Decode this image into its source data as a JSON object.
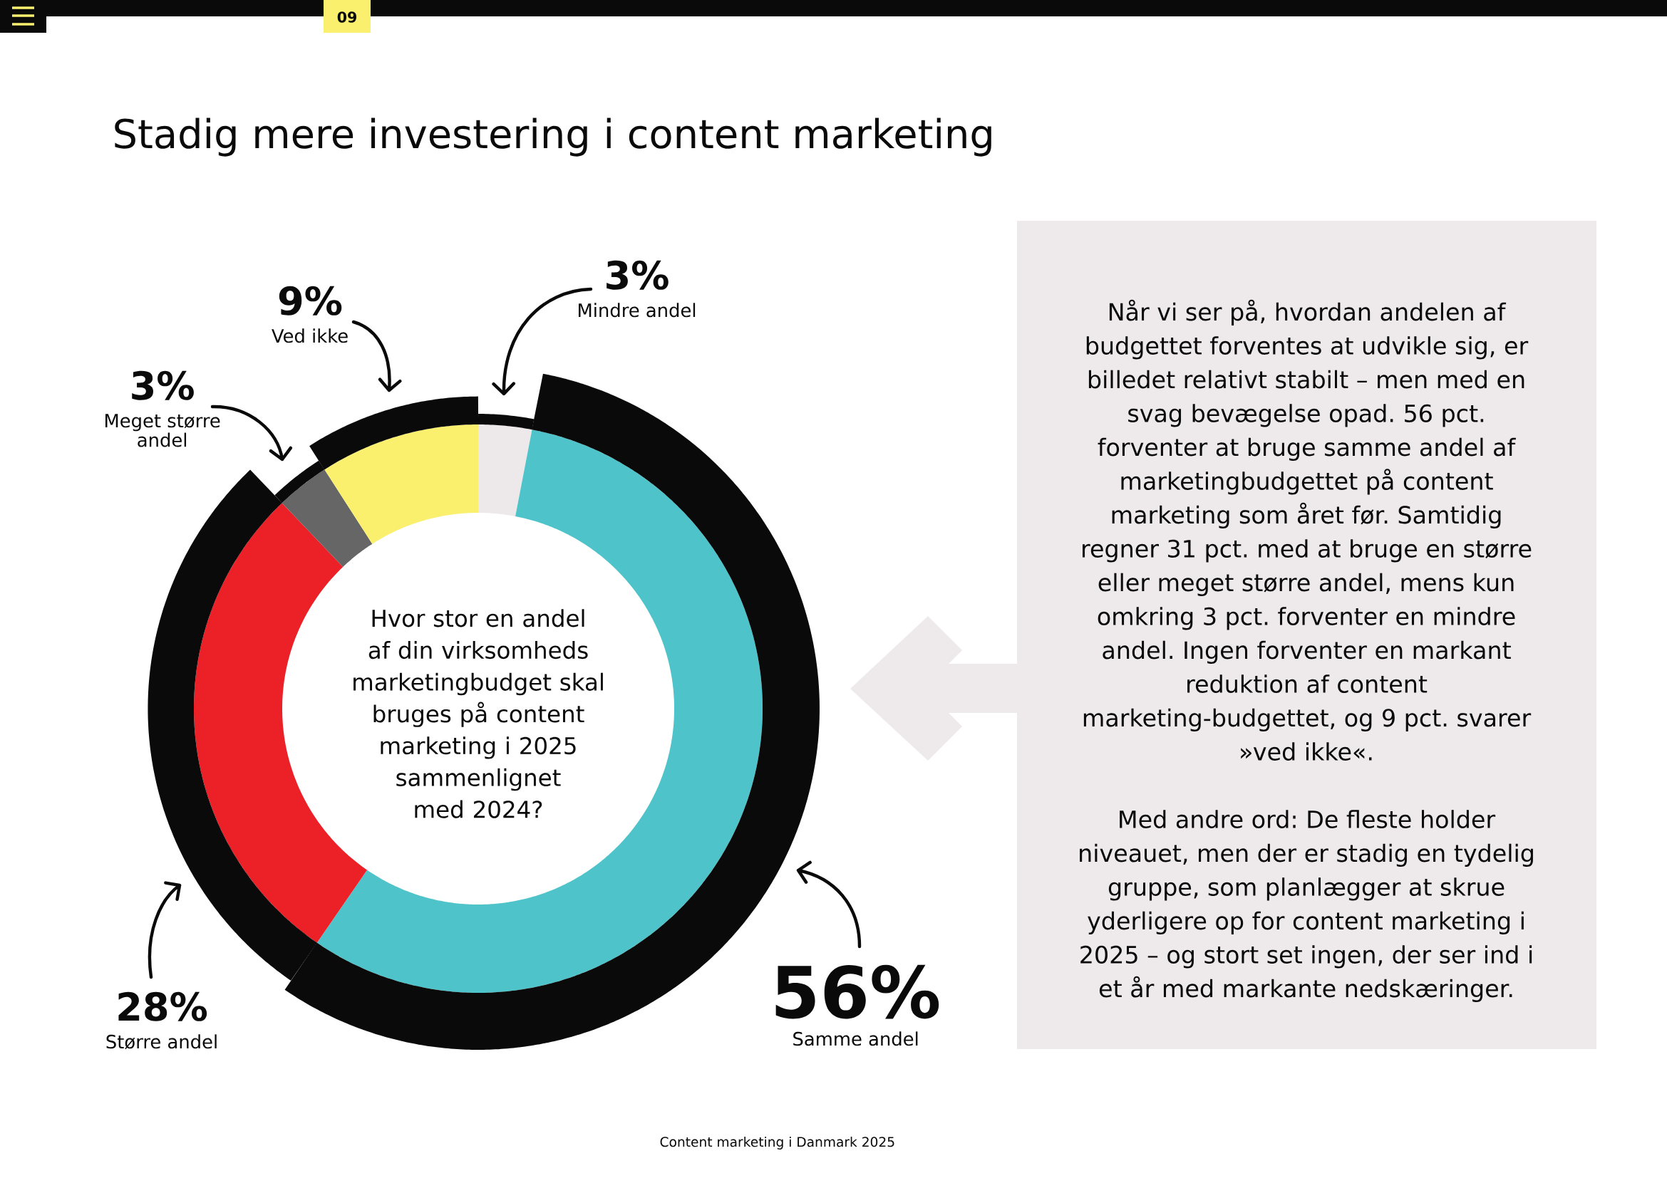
{
  "chart_data": {
    "type": "donut",
    "title": "Stadig mere investering i content marketing",
    "categories": [
      "Mindre andel",
      "Samme andel",
      "Større andel",
      "Meget større andel",
      "Ved ikke"
    ],
    "values": [
      3,
      56,
      28,
      3,
      9
    ],
    "colors": [
      "#ede8e9",
      "#4fc3ca",
      "#ec2027",
      "#666666",
      "#faf06e"
    ],
    "value_labels": [
      "3%",
      "56%",
      "28%",
      "3%",
      "9%"
    ],
    "annotations": [
      "Hvor stor en andel af din virksomheds marketingbudget skal bruges på content marketing i 2025 sammenlignet med 2024?",
      "Når vi ser på, hvordan andelen af budgettet forventes at udvikle sig, er billedet relativt stabilt – men med en svag bevægelse opad. 56 pct. forventer at bruge samme andel af marketingbudgettet på content marketing som året før. Samtidig regner 31 pct. med at bruge en større eller meget større andel, mens kun omkring 3 pct. forventer en mindre andel. Ingen forventer en markant reduktion af content marketing-budgettet, og 9 pct. svarer »ved ikke«.",
      "Med andre ord: De fleste holder niveauet, men der er stadig en tydelig gruppe, som planlægger at skrue yderligere op for content marketing i 2025 – og stort set ingen, der ser ind i et år med markante nedskæringer.",
      "Content marketing i Danmark 2025",
      "09"
    ]
  }
}
